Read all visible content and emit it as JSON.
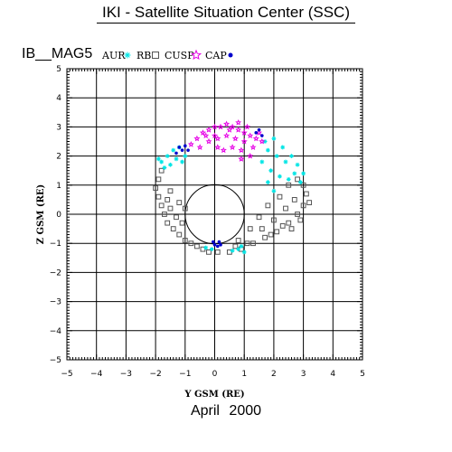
{
  "page": {
    "title": "IKI - Satellite Situation Center (SSC)",
    "subtitle": "April   2000"
  },
  "chart_data": {
    "type": "scatter",
    "title": "IB__MAG5",
    "xlabel": "Y GSM (RE)",
    "ylabel": "Z GSM (RE)",
    "xlim": [
      -5,
      5
    ],
    "ylim": [
      -5,
      5
    ],
    "xticks": [
      "−5",
      "−4",
      "−3",
      "−2",
      "−1",
      "0",
      "1",
      "2",
      "3",
      "4",
      "5"
    ],
    "yticks": [
      "−5",
      "−4",
      "−3",
      "−2",
      "−1",
      "0",
      "1",
      "2",
      "3",
      "4",
      "5"
    ],
    "grid": true,
    "earth_radius": 1,
    "legend_position": "top",
    "legend": [
      {
        "label": "AUR",
        "marker": "asterisk",
        "color": "#00e5e5"
      },
      {
        "label": "RB",
        "marker": "square",
        "color": "#555555"
      },
      {
        "label": "CUSP",
        "marker": "star",
        "color": "#e600e6"
      },
      {
        "label": "CAP",
        "marker": "dot",
        "color": "#0000cc"
      }
    ],
    "series": [
      {
        "name": "RB",
        "marker": "square",
        "color": "#555555",
        "points": [
          [
            -1.8,
            1.5
          ],
          [
            -1.9,
            1.2
          ],
          [
            -2.0,
            0.9
          ],
          [
            -1.9,
            0.6
          ],
          [
            -1.8,
            0.3
          ],
          [
            -1.7,
            0.0
          ],
          [
            -1.6,
            -0.3
          ],
          [
            -1.4,
            -0.5
          ],
          [
            -1.2,
            -0.7
          ],
          [
            -1.0,
            -0.9
          ],
          [
            -0.8,
            -1.0
          ],
          [
            -0.6,
            -1.1
          ],
          [
            -0.4,
            -1.2
          ],
          [
            -0.2,
            -1.3
          ],
          [
            -1.5,
            0.8
          ],
          [
            -1.6,
            0.5
          ],
          [
            -1.5,
            0.2
          ],
          [
            -1.3,
            -0.1
          ],
          [
            -1.1,
            -0.3
          ],
          [
            -1.0,
            0.2
          ],
          [
            -1.2,
            0.4
          ],
          [
            0.1,
            -1.3
          ],
          [
            0.5,
            -1.3
          ],
          [
            0.9,
            -1.2
          ],
          [
            1.3,
            -1.0
          ],
          [
            1.7,
            -0.8
          ],
          [
            2.1,
            -0.6
          ],
          [
            2.5,
            -0.3
          ],
          [
            2.8,
            0.0
          ],
          [
            3.0,
            0.3
          ],
          [
            3.1,
            0.7
          ],
          [
            3.0,
            1.0
          ],
          [
            2.8,
            1.2
          ],
          [
            2.5,
            1.0
          ],
          [
            2.2,
            0.6
          ],
          [
            1.8,
            0.3
          ],
          [
            1.5,
            -0.1
          ],
          [
            1.2,
            -0.5
          ],
          [
            0.8,
            -0.9
          ],
          [
            2.7,
            0.5
          ],
          [
            2.4,
            0.2
          ],
          [
            2.0,
            -0.2
          ],
          [
            1.6,
            -0.5
          ],
          [
            2.9,
            -0.2
          ],
          [
            3.2,
            0.4
          ],
          [
            1.1,
            -1.0
          ],
          [
            0.7,
            -1.1
          ],
          [
            2.6,
            -0.5
          ],
          [
            2.3,
            -0.4
          ],
          [
            1.9,
            -0.7
          ]
        ]
      },
      {
        "name": "AUR",
        "marker": "asterisk",
        "color": "#00e5e5",
        "points": [
          [
            -1.8,
            1.8
          ],
          [
            -1.6,
            2.0
          ],
          [
            -1.4,
            2.2
          ],
          [
            -1.7,
            1.6
          ],
          [
            -1.5,
            1.7
          ],
          [
            -1.3,
            1.9
          ],
          [
            -1.1,
            1.8
          ],
          [
            -1.0,
            2.0
          ],
          [
            -1.2,
            2.3
          ],
          [
            -1.9,
            1.9
          ],
          [
            2.0,
            2.6
          ],
          [
            2.3,
            2.3
          ],
          [
            2.6,
            2.0
          ],
          [
            2.8,
            1.7
          ],
          [
            3.0,
            1.4
          ],
          [
            2.4,
            1.8
          ],
          [
            2.1,
            2.0
          ],
          [
            1.8,
            2.2
          ],
          [
            1.6,
            1.8
          ],
          [
            1.9,
            1.5
          ],
          [
            2.2,
            1.3
          ],
          [
            2.5,
            1.2
          ],
          [
            1.8,
            1.1
          ],
          [
            2.0,
            0.8
          ],
          [
            1.7,
            2.5
          ],
          [
            2.7,
            1.4
          ],
          [
            2.9,
            1.1
          ],
          [
            0.8,
            -1.2
          ],
          [
            1.0,
            -1.3
          ],
          [
            0.6,
            -1.25
          ],
          [
            0.9,
            -1.1
          ],
          [
            -0.3,
            -1.15
          ],
          [
            -0.1,
            -1.2
          ]
        ]
      },
      {
        "name": "CUSP",
        "marker": "star",
        "color": "#e600e6",
        "points": [
          [
            -0.8,
            2.4
          ],
          [
            -0.6,
            2.6
          ],
          [
            -0.4,
            2.8
          ],
          [
            -0.2,
            2.9
          ],
          [
            0.0,
            3.0
          ],
          [
            0.2,
            3.0
          ],
          [
            0.4,
            3.1
          ],
          [
            0.6,
            3.0
          ],
          [
            0.8,
            2.9
          ],
          [
            1.0,
            2.8
          ],
          [
            1.2,
            2.7
          ],
          [
            1.4,
            2.6
          ],
          [
            1.6,
            2.5
          ],
          [
            -0.5,
            2.3
          ],
          [
            -0.2,
            2.5
          ],
          [
            0.1,
            2.6
          ],
          [
            0.4,
            2.7
          ],
          [
            0.7,
            2.6
          ],
          [
            1.0,
            2.5
          ],
          [
            1.3,
            2.3
          ],
          [
            0.3,
            2.2
          ],
          [
            0.6,
            2.3
          ],
          [
            0.9,
            2.2
          ],
          [
            1.2,
            2.0
          ],
          [
            0.9,
            1.9
          ],
          [
            0.1,
            2.3
          ],
          [
            -0.3,
            2.7
          ],
          [
            0.5,
            2.9
          ],
          [
            1.1,
            3.0
          ],
          [
            0.8,
            3.15
          ],
          [
            1.5,
            2.8
          ],
          [
            0.0,
            2.7
          ]
        ]
      },
      {
        "name": "CAP",
        "marker": "dot",
        "color": "#0000cc",
        "points": [
          [
            -1.2,
            2.3
          ],
          [
            -1.1,
            2.2
          ],
          [
            -1.0,
            2.35
          ],
          [
            -1.3,
            2.1
          ],
          [
            -0.9,
            2.2
          ],
          [
            1.4,
            2.8
          ],
          [
            1.5,
            2.9
          ],
          [
            1.6,
            2.7
          ],
          [
            0.0,
            -1.05
          ],
          [
            0.1,
            -1.1
          ],
          [
            0.2,
            -1.05
          ],
          [
            -0.05,
            -0.95
          ],
          [
            0.15,
            -0.95
          ]
        ]
      }
    ]
  }
}
